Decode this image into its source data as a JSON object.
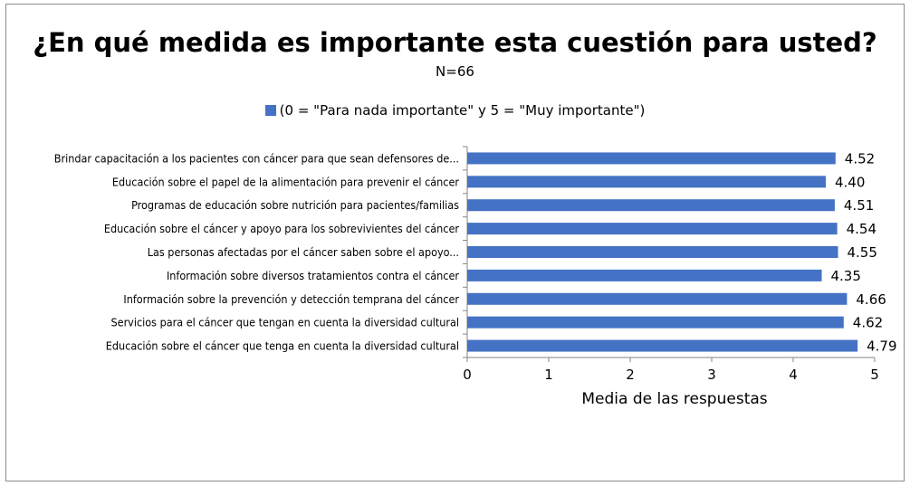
{
  "chart_data": {
    "type": "bar",
    "orientation": "horizontal",
    "title": "¿En qué medida es importante esta cuestión para usted?",
    "subtitle": "N=66",
    "xlabel": "Media de las respuestas",
    "ylabel": "",
    "xlim": [
      0,
      5
    ],
    "x_ticks": [
      "0",
      "1",
      "2",
      "3",
      "4",
      "5"
    ],
    "legend": {
      "position": "top",
      "entries": [
        "(0 = \"Para nada importante\" y 5 = \"Muy importante\")"
      ]
    },
    "grid": false,
    "bar_color": "#4472c4",
    "categories": [
      "Brindar capacitación a los pacientes con cáncer para que sean defensores de...",
      "Educación sobre el papel de la alimentación para prevenir el cáncer",
      "Programas de educación sobre nutrición para pacientes/familias",
      "Educación sobre el cáncer y apoyo para los sobrevivientes del cáncer",
      "Las personas afectadas por el cáncer saben sobre el apoyo...",
      "Información sobre diversos tratamientos contra el cáncer",
      "Información sobre la prevención y detección temprana del cáncer",
      "Servicios para el cáncer que tengan en cuenta la diversidad cultural",
      "Educación sobre el cáncer que tenga en cuenta la diversidad cultural"
    ],
    "values": [
      4.52,
      4.4,
      4.51,
      4.54,
      4.55,
      4.35,
      4.66,
      4.62,
      4.79
    ],
    "value_labels": [
      "4.52",
      "4.40",
      "4.51",
      "4.54",
      "4.55",
      "4.35",
      "4.66",
      "4.62",
      "4.79"
    ]
  }
}
